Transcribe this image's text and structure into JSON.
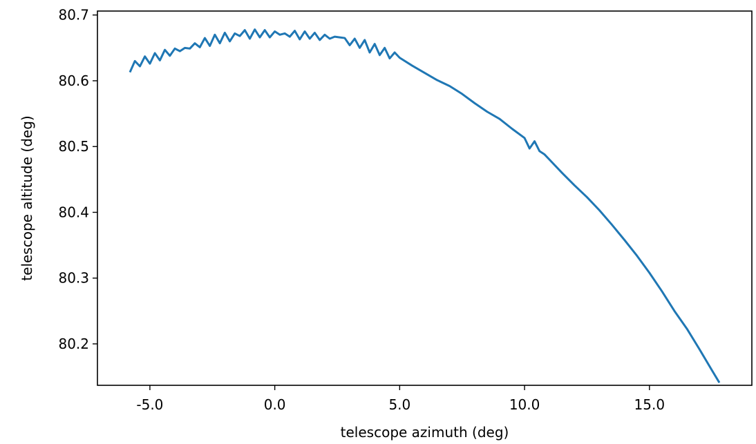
{
  "chart_data": {
    "type": "line",
    "title": "",
    "xlabel": "telescope azimuth (deg)",
    "ylabel": "telescope altitude (deg)",
    "xlim": [
      -7.1,
      19.1
    ],
    "ylim": [
      80.137,
      80.706
    ],
    "xticks": [
      -5.0,
      0.0,
      5.0,
      10.0,
      15.0
    ],
    "xtick_labels": [
      "-5.0",
      "0.0",
      "5.0",
      "10.0",
      "15.0"
    ],
    "yticks": [
      80.2,
      80.3,
      80.4,
      80.5,
      80.6,
      80.7
    ],
    "ytick_labels": [
      "80.2",
      "80.3",
      "80.4",
      "80.5",
      "80.6",
      "80.7"
    ],
    "grid": false,
    "legend": "none",
    "series": [
      {
        "color": "#1f77b4",
        "x": [
          -5.8,
          -5.6,
          -5.4,
          -5.2,
          -5.0,
          -4.8,
          -4.6,
          -4.4,
          -4.2,
          -4.0,
          -3.8,
          -3.6,
          -3.4,
          -3.2,
          -3.0,
          -2.8,
          -2.6,
          -2.4,
          -2.2,
          -2.0,
          -1.8,
          -1.6,
          -1.4,
          -1.2,
          -1.0,
          -0.8,
          -0.6,
          -0.4,
          -0.2,
          0.0,
          0.2,
          0.4,
          0.6,
          0.8,
          1.0,
          1.2,
          1.4,
          1.6,
          1.8,
          2.0,
          2.2,
          2.4,
          2.6,
          2.8,
          3.0,
          3.2,
          3.4,
          3.6,
          3.8,
          4.0,
          4.2,
          4.4,
          4.6,
          4.8,
          5.0,
          5.5,
          6.0,
          6.5,
          7.0,
          7.5,
          8.0,
          8.5,
          9.0,
          9.5,
          10.0,
          10.2,
          10.4,
          10.6,
          10.8,
          11.0,
          11.5,
          12.0,
          12.5,
          13.0,
          13.5,
          14.0,
          14.5,
          15.0,
          15.5,
          16.0,
          16.5,
          17.0,
          17.5,
          17.8
        ],
        "y": [
          80.613,
          80.63,
          80.622,
          80.637,
          80.626,
          80.642,
          80.631,
          80.647,
          80.638,
          80.649,
          80.645,
          80.65,
          80.649,
          80.657,
          80.651,
          80.665,
          80.653,
          80.67,
          80.657,
          80.673,
          80.66,
          80.672,
          80.668,
          80.677,
          80.664,
          80.678,
          80.666,
          80.677,
          80.666,
          80.675,
          80.67,
          80.672,
          80.667,
          80.676,
          80.663,
          80.675,
          80.664,
          80.673,
          80.662,
          80.67,
          80.664,
          80.667,
          80.666,
          80.665,
          80.654,
          80.664,
          80.65,
          80.662,
          80.643,
          80.656,
          80.639,
          80.65,
          80.634,
          80.643,
          80.635,
          80.623,
          80.612,
          80.601,
          80.592,
          80.58,
          80.566,
          80.553,
          80.542,
          80.527,
          80.513,
          80.497,
          80.508,
          80.493,
          80.488,
          80.48,
          80.46,
          80.441,
          80.423,
          80.403,
          80.381,
          80.358,
          80.334,
          80.308,
          80.28,
          80.25,
          80.223,
          80.192,
          80.16,
          80.141
        ]
      }
    ]
  }
}
